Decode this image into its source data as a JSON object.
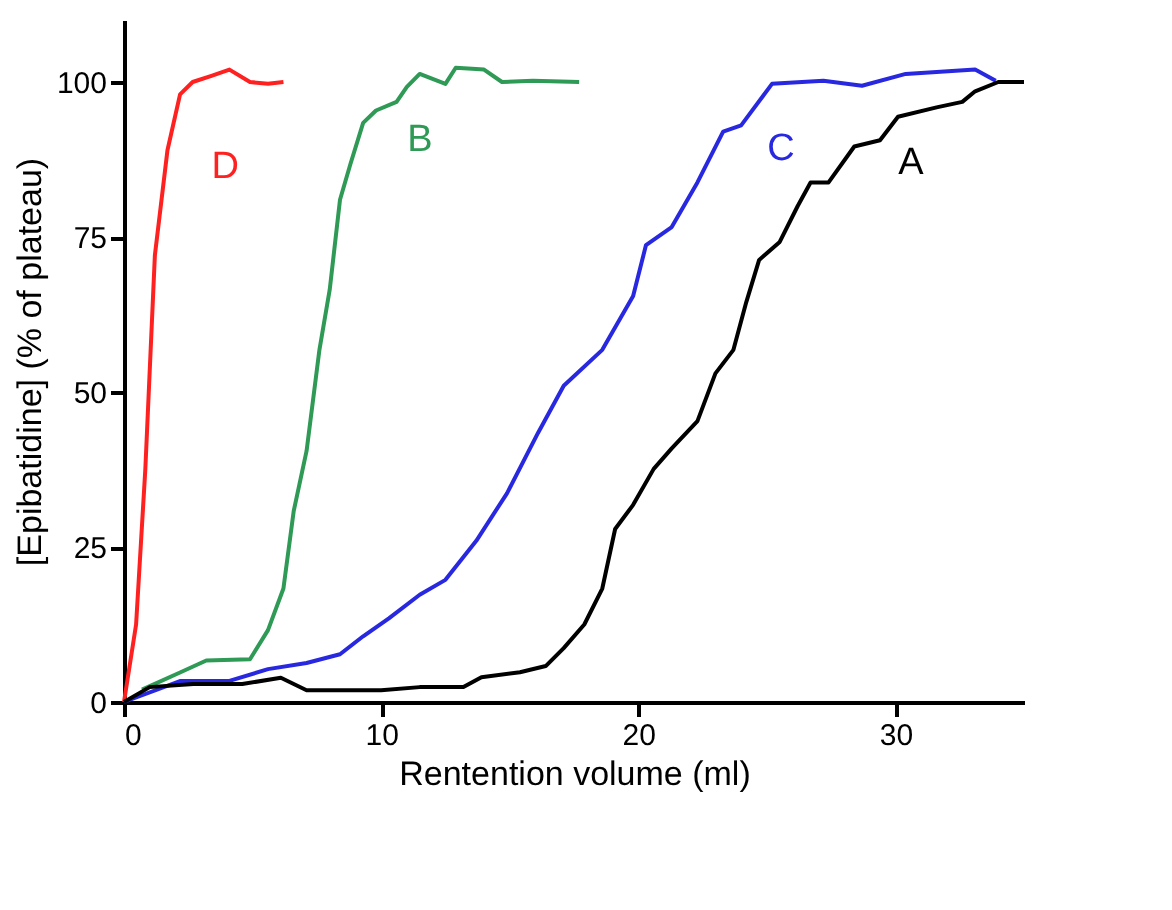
{
  "chart_data": {
    "type": "line",
    "xlabel": "Rentention volume (ml)",
    "ylabel": "[Epibatidine] (% of plateau)",
    "xlim": [
      0,
      35
    ],
    "ylim": [
      0,
      110
    ],
    "xticks": [
      0,
      10,
      20,
      30
    ],
    "yticks": [
      0,
      25,
      50,
      75,
      100
    ],
    "grid": false,
    "legend": false,
    "marker": "none",
    "line_style": "solid",
    "series": [
      {
        "name": "D",
        "color": "#ff2020",
        "x": [
          0,
          0.47,
          0.83,
          1.2,
          1.69,
          2.18,
          2.67,
          3.4,
          4.1,
          4.9,
          5.6,
          6.2
        ],
        "values": [
          0,
          12.5,
          37.6,
          72,
          89,
          98,
          100,
          101,
          102,
          100,
          99.7,
          100
        ]
      },
      {
        "name": "B",
        "color": "#2e9a55",
        "x": [
          0.7,
          2.2,
          3.2,
          4.9,
          5.6,
          6.2,
          6.6,
          7.1,
          7.6,
          8.0,
          8.4,
          8.8,
          9.3,
          9.8,
          10.6,
          11.0,
          11.5,
          12.5,
          12.9,
          14.0,
          14.7,
          15.9,
          17.7
        ],
        "values": [
          2,
          4.8,
          6.7,
          6.9,
          11.6,
          18.3,
          30.8,
          40.5,
          56.8,
          66.5,
          81,
          86.7,
          93.4,
          95.4,
          96.8,
          99.2,
          101.3,
          99.7,
          102.3,
          102,
          100,
          100.2,
          100
        ]
      },
      {
        "name": "C",
        "color": "#2828e0",
        "x": [
          0,
          2.2,
          4.1,
          5.6,
          7.1,
          8.4,
          9.3,
          10.3,
          11.5,
          12.5,
          13.7,
          14.9,
          16.1,
          17.1,
          18.6,
          19.8,
          20.3,
          21.3,
          22.3,
          23.3,
          24.0,
          25.2,
          27.2,
          28.7,
          30.4,
          33.1,
          33.9
        ],
        "values": [
          0,
          3.4,
          3.4,
          5.3,
          6.3,
          7.7,
          10.6,
          13.5,
          17.3,
          19.7,
          26,
          33.7,
          43.4,
          51,
          56.8,
          65.5,
          73.7,
          76.6,
          83.8,
          92,
          93,
          99.7,
          100.2,
          99.4,
          101.3,
          102,
          100.2
        ]
      },
      {
        "name": "A",
        "color": "#000000",
        "x": [
          0,
          1.0,
          2.7,
          4.6,
          6.1,
          7.1,
          10.0,
          11.5,
          13.2,
          13.9,
          15.4,
          16.4,
          17.1,
          17.9,
          18.6,
          19.1,
          19.8,
          20.6,
          21.3,
          22.3,
          23.0,
          23.7,
          24.2,
          24.7,
          25.5,
          26.2,
          26.7,
          27.4,
          28.4,
          29.4,
          30.1,
          31.6,
          32.6,
          33.1,
          34.0,
          35.0
        ],
        "values": [
          0,
          2.4,
          2.9,
          2.9,
          3.9,
          1.9,
          1.9,
          2.4,
          2.4,
          4,
          4.8,
          5.8,
          8.7,
          12.5,
          18.3,
          27.9,
          31.8,
          37.6,
          40.9,
          45.3,
          53,
          56.8,
          64.5,
          71.3,
          74.2,
          80,
          83.8,
          83.8,
          89.6,
          90.6,
          94.4,
          95.9,
          96.8,
          98.5,
          100,
          100
        ]
      }
    ]
  }
}
